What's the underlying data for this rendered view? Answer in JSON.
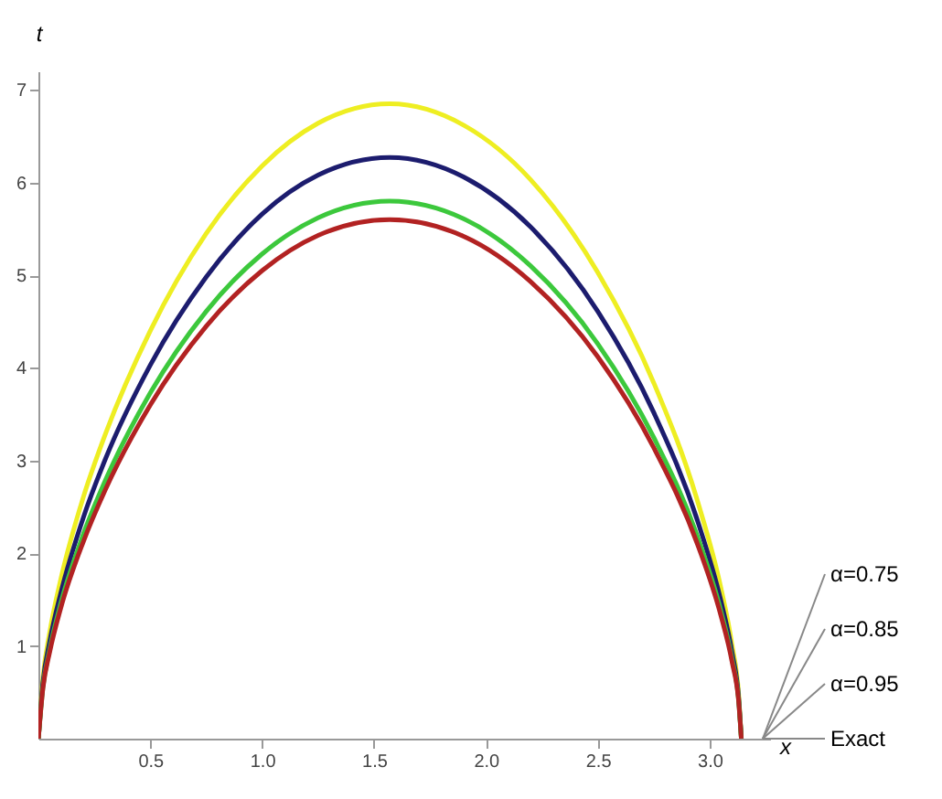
{
  "chart_data": {
    "type": "line",
    "xlabel": "x",
    "ylabel": "t",
    "x": [
      0,
      0.02,
      0.05,
      0.1,
      0.2,
      0.3,
      0.5,
      0.75,
      1.0,
      1.25,
      1.57,
      1.9,
      2.2,
      2.5,
      2.75,
      2.95,
      3.05,
      3.1,
      3.13,
      3.1416
    ],
    "series": [
      {
        "name": "α=0.75",
        "color": "#eeee22",
        "values": [
          0,
          0.65,
          1.14,
          1.72,
          2.6,
          3.29,
          4.4,
          5.45,
          6.18,
          6.64,
          6.85,
          6.62,
          6.03,
          5.03,
          3.84,
          2.53,
          1.63,
          1.01,
          0.47,
          0
        ]
      },
      {
        "name": "α=0.85",
        "color": "#1c1c6e",
        "values": [
          0,
          0.6,
          1.04,
          1.57,
          2.38,
          3.02,
          4.03,
          4.98,
          5.66,
          6.08,
          6.27,
          6.06,
          5.52,
          4.61,
          3.52,
          2.32,
          1.49,
          0.93,
          0.43,
          0
        ]
      },
      {
        "name": "α=0.95",
        "color": "#3cc83c",
        "values": [
          0,
          0.55,
          0.96,
          1.46,
          2.2,
          2.79,
          3.73,
          4.61,
          5.23,
          5.62,
          5.8,
          5.61,
          5.1,
          4.26,
          3.25,
          2.15,
          1.38,
          0.86,
          0.4,
          0
        ]
      },
      {
        "name": "Exact",
        "color": "#b22222",
        "values": [
          0,
          0.54,
          0.93,
          1.41,
          2.12,
          2.69,
          3.6,
          4.45,
          5.05,
          5.43,
          5.6,
          5.42,
          4.93,
          4.12,
          3.14,
          2.07,
          1.33,
          0.83,
          0.39,
          0
        ]
      }
    ],
    "xlim": [
      0,
      3.27
    ],
    "ylim": [
      0,
      7.2
    ],
    "xticks": [
      0.5,
      {
        "value": 1,
        "label": "1.0"
      },
      1.5,
      {
        "value": 2,
        "label": "2.0"
      },
      2.5,
      {
        "value": 3,
        "label": "3.0"
      }
    ],
    "yticks": [
      1,
      2,
      3,
      4,
      5,
      6,
      7
    ],
    "grid": false,
    "legend": "right",
    "marker": "none",
    "line_style": "solid"
  }
}
